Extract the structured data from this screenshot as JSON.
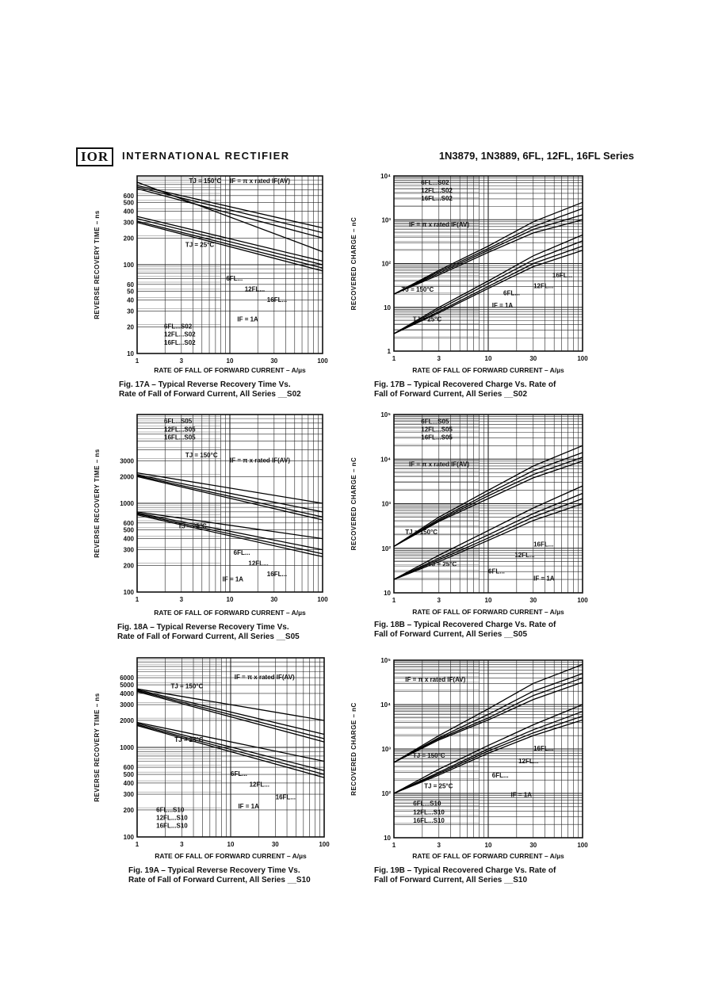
{
  "header": {
    "logo": "IOR",
    "company": "INTERNATIONAL RECTIFIER",
    "series": "1N3879, 1N3889, 6FL, 12FL, 16FL Series"
  },
  "x_axis_label": "RATE OF FALL OF FORWARD CURRENT – A/µs",
  "chart_data": [
    {
      "id": "fig17a",
      "type": "line",
      "fig": "Fig. 17A –",
      "caption_line1": "Typical Reverse Recovery Time Vs.",
      "caption_line2": "Rate of Fall of Forward Current, All Series __S02",
      "ylabel": "REVERSE RECOVERY TIME – ns",
      "xlabel": "RATE OF FALL OF FORWARD CURRENT – A/µs",
      "xlim": [
        1,
        100
      ],
      "ylim": [
        10,
        1000
      ],
      "xscale": "log",
      "yscale": "log",
      "xticks": [
        "1",
        "3",
        "10",
        "30",
        "100"
      ],
      "yticks": [
        [
          "10",
          "10"
        ],
        [
          "20",
          "20"
        ],
        [
          "30",
          "30"
        ],
        [
          "40",
          "40"
        ],
        [
          "50",
          "50"
        ],
        [
          "60",
          "60"
        ],
        [
          "100",
          "100"
        ],
        [
          "200",
          "200"
        ],
        [
          "300",
          "300"
        ],
        [
          "400",
          "400"
        ],
        [
          "500",
          "500"
        ],
        [
          "600",
          "600"
        ]
      ],
      "annotations": [
        "TJ = 150°C",
        "IF = π x rated IF(AV)",
        "TJ = 25°C",
        "6FL...",
        "12FL...",
        "16FL...",
        "IF = 1A"
      ],
      "legend": [
        "6FL...S02",
        "12FL...S02",
        "16FL...S02"
      ],
      "series": [
        {
          "x": [
            1,
            100
          ],
          "y": [
            850,
            140
          ]
        },
        {
          "x": [
            1,
            100
          ],
          "y": [
            780,
            260
          ]
        },
        {
          "x": [
            1,
            100
          ],
          "y": [
            750,
            230
          ]
        },
        {
          "x": [
            1,
            100
          ],
          "y": [
            720,
            200
          ]
        },
        {
          "x": [
            1,
            100
          ],
          "y": [
            350,
            110
          ]
        },
        {
          "x": [
            1,
            100
          ],
          "y": [
            330,
            100
          ]
        },
        {
          "x": [
            1,
            100
          ],
          "y": [
            310,
            92
          ]
        },
        {
          "x": [
            1,
            100
          ],
          "y": [
            300,
            85
          ]
        }
      ]
    },
    {
      "id": "fig17b",
      "type": "line",
      "fig": "Fig. 17B –",
      "caption_line1": "Typical Recovered Charge Vs. Rate of",
      "caption_line2": "Fall of Forward Current, All Series __S02",
      "ylabel": "RECOVERED CHARGE – nC",
      "xlabel": "RATE OF FALL OF FORWARD CURRENT – A/µs",
      "xlim": [
        1,
        100
      ],
      "ylim": [
        1,
        10000
      ],
      "xscale": "log",
      "yscale": "log",
      "xticks": [
        "1",
        "3",
        "10",
        "30",
        "100"
      ],
      "yticks": [
        [
          "1",
          "1"
        ],
        [
          "10",
          "10"
        ],
        [
          "100",
          "10²"
        ],
        [
          "1000",
          "10³"
        ],
        [
          "10000",
          "10⁴"
        ]
      ],
      "annotations": [
        "IF = π x rated IF(AV)",
        "TJ = 150°C",
        "TJ = 25°C",
        "6FL...",
        "12FL...",
        "16FL...",
        "IF = 1A"
      ],
      "legend": [
        "6FL...S02",
        "12FL...S02",
        "16FL...S02"
      ],
      "series": [
        {
          "x": [
            1,
            3,
            10,
            30,
            100
          ],
          "y": [
            20,
            70,
            250,
            900,
            2500
          ]
        },
        {
          "x": [
            1,
            3,
            10,
            30,
            100
          ],
          "y": [
            20,
            65,
            220,
            700,
            1800
          ]
        },
        {
          "x": [
            1,
            3,
            10,
            30,
            100
          ],
          "y": [
            20,
            60,
            200,
            600,
            1300
          ]
        },
        {
          "x": [
            1,
            3,
            10,
            30,
            100
          ],
          "y": [
            20,
            55,
            180,
            500,
            1000
          ]
        },
        {
          "x": [
            1,
            3,
            10,
            30,
            100
          ],
          "y": [
            2.5,
            10,
            40,
            150,
            450
          ]
        },
        {
          "x": [
            1,
            3,
            10,
            30,
            100
          ],
          "y": [
            2.5,
            9,
            35,
            120,
            330
          ]
        },
        {
          "x": [
            1,
            3,
            10,
            30,
            100
          ],
          "y": [
            2.5,
            8,
            30,
            100,
            250
          ]
        },
        {
          "x": [
            1,
            3,
            10,
            30,
            100
          ],
          "y": [
            2.5,
            7.5,
            27,
            85,
            200
          ]
        }
      ]
    },
    {
      "id": "fig18a",
      "type": "line",
      "fig": "Fig. 18A –",
      "caption_line1": "Typical Reverse Recovery Time Vs.",
      "caption_line2": "Rate of Fall of Forward Current, All Series __S05",
      "ylabel": "REVERSE RECOVERY TIME – ns",
      "xlabel": "RATE OF FALL OF FORWARD CURRENT – A/µs",
      "xlim": [
        1,
        100
      ],
      "ylim": [
        100,
        10000
      ],
      "xscale": "log",
      "yscale": "log",
      "xticks": [
        "1",
        "3",
        "10",
        "30",
        "100"
      ],
      "yticks": [
        [
          "100",
          "100"
        ],
        [
          "200",
          "200"
        ],
        [
          "300",
          "300"
        ],
        [
          "400",
          "400"
        ],
        [
          "500",
          "500"
        ],
        [
          "600",
          "600"
        ],
        [
          "1000",
          "1000"
        ],
        [
          "2000",
          "2000"
        ],
        [
          "3000",
          "3000"
        ]
      ],
      "annotations": [
        "TJ = 150°C",
        "IF = π x rated IF(AV)",
        "TJ = 25°C",
        "6FL...",
        "12FL...",
        "16FL...",
        "IF = 1A"
      ],
      "legend": [
        "6FL...S05",
        "12FL...S05",
        "16FL...S05"
      ],
      "series": [
        {
          "x": [
            1,
            100
          ],
          "y": [
            2200,
            1000
          ]
        },
        {
          "x": [
            1,
            100
          ],
          "y": [
            2100,
            800
          ]
        },
        {
          "x": [
            1,
            100
          ],
          "y": [
            2050,
            700
          ]
        },
        {
          "x": [
            1,
            100
          ],
          "y": [
            2000,
            650
          ]
        },
        {
          "x": [
            1,
            100
          ],
          "y": [
            800,
            400
          ]
        },
        {
          "x": [
            1,
            100
          ],
          "y": [
            780,
            300
          ]
        },
        {
          "x": [
            1,
            100
          ],
          "y": [
            760,
            270
          ]
        },
        {
          "x": [
            1,
            100
          ],
          "y": [
            740,
            250
          ]
        }
      ]
    },
    {
      "id": "fig18b",
      "type": "line",
      "fig": "Fig. 18B –",
      "caption_line1": "Typical Recovered Charge Vs. Rate of",
      "caption_line2": "Fall of Forward Current, All Series __S05",
      "ylabel": "RECOVERED CHARGE – nC",
      "xlabel": "RATE OF FALL OF FORWARD CURRENT – A/µs",
      "xlim": [
        1,
        100
      ],
      "ylim": [
        10,
        100000
      ],
      "xscale": "log",
      "yscale": "log",
      "xticks": [
        "1",
        "3",
        "10",
        "30",
        "100"
      ],
      "yticks": [
        [
          "10",
          "10"
        ],
        [
          "100",
          "10²"
        ],
        [
          "1000",
          "10³"
        ],
        [
          "10000",
          "10⁴"
        ],
        [
          "100000",
          "10⁵"
        ]
      ],
      "annotations": [
        "IF = π x rated IF(AV)",
        "TJ = 150°C",
        "TJ = 25°C",
        "6FL...",
        "12FL...",
        "16FL...",
        "IF = 1A"
      ],
      "legend": [
        "6FL...S05",
        "12FL...S05",
        "16FL...S05"
      ],
      "series": [
        {
          "x": [
            1,
            3,
            10,
            30,
            100
          ],
          "y": [
            110,
            500,
            2000,
            7000,
            20000
          ]
        },
        {
          "x": [
            1,
            3,
            10,
            30,
            100
          ],
          "y": [
            110,
            450,
            1700,
            5500,
            14000
          ]
        },
        {
          "x": [
            1,
            3,
            10,
            30,
            100
          ],
          "y": [
            110,
            420,
            1500,
            4500,
            11000
          ]
        },
        {
          "x": [
            1,
            3,
            10,
            30,
            100
          ],
          "y": [
            110,
            400,
            1300,
            3800,
            9000
          ]
        },
        {
          "x": [
            1,
            3,
            10,
            30,
            100
          ],
          "y": [
            20,
            70,
            250,
            800,
            2500
          ]
        },
        {
          "x": [
            1,
            3,
            10,
            30,
            100
          ],
          "y": [
            20,
            60,
            200,
            600,
            1700
          ]
        },
        {
          "x": [
            1,
            3,
            10,
            30,
            100
          ],
          "y": [
            20,
            55,
            170,
            500,
            1300
          ]
        },
        {
          "x": [
            1,
            3,
            10,
            30,
            100
          ],
          "y": [
            20,
            50,
            150,
            420,
            1000
          ]
        }
      ]
    },
    {
      "id": "fig19a",
      "type": "line",
      "fig": "Fig. 19A –",
      "caption_line1": "Typical Reverse Recovery Time Vs.",
      "caption_line2": "Rate of Fall of Forward Current, All Series __S10",
      "ylabel": "REVERSE RECOVERY TIME – ns",
      "xlabel": "RATE OF FALL OF FORWARD CURRENT – A/µs",
      "xlim": [
        1,
        100
      ],
      "ylim": [
        100,
        10000
      ],
      "xscale": "log",
      "yscale": "log",
      "xticks": [
        "1",
        "3",
        "10",
        "30",
        "100"
      ],
      "yticks": [
        [
          "100",
          "100"
        ],
        [
          "200",
          "200"
        ],
        [
          "300",
          "300"
        ],
        [
          "400",
          "400"
        ],
        [
          "500",
          "500"
        ],
        [
          "600",
          "600"
        ],
        [
          "1000",
          "1000"
        ],
        [
          "2000",
          "2000"
        ],
        [
          "3000",
          "3000"
        ],
        [
          "4000",
          "4000"
        ],
        [
          "5000",
          "5000"
        ],
        [
          "6000",
          "6000"
        ]
      ],
      "annotations": [
        "TJ = 150°C",
        "IF = π x rated IF(AV)",
        "TJ = 25°C",
        "6FL...",
        "12FL...",
        "16FL...",
        "IF = 1A"
      ],
      "legend": [
        "6FL...S10",
        "12FL...S10",
        "16FL...S10"
      ],
      "series": [
        {
          "x": [
            1,
            100
          ],
          "y": [
            4500,
            2000
          ]
        },
        {
          "x": [
            1,
            100
          ],
          "y": [
            4400,
            1400
          ]
        },
        {
          "x": [
            1,
            100
          ],
          "y": [
            4300,
            1250
          ]
        },
        {
          "x": [
            1,
            100
          ],
          "y": [
            4200,
            1150
          ]
        },
        {
          "x": [
            1,
            100
          ],
          "y": [
            1900,
            700
          ]
        },
        {
          "x": [
            1,
            100
          ],
          "y": [
            1850,
            550
          ]
        },
        {
          "x": [
            1,
            100
          ],
          "y": [
            1800,
            500
          ]
        },
        {
          "x": [
            1,
            100
          ],
          "y": [
            1750,
            460
          ]
        }
      ]
    },
    {
      "id": "fig19b",
      "type": "line",
      "fig": "Fig. 19B –",
      "caption_line1": "Typical Recovered Charge Vs. Rate of",
      "caption_line2": "Fall of Forward Current, All Series __S10",
      "ylabel": "RECOVERED CHARGE – nC",
      "xlabel": "RATE OF FALL OF FORWARD CURRENT – A/µs",
      "xlim": [
        1,
        100
      ],
      "ylim": [
        10,
        100000
      ],
      "xscale": "log",
      "yscale": "log",
      "xticks": [
        "1",
        "3",
        "10",
        "30",
        "100"
      ],
      "yticks": [
        [
          "10",
          "10"
        ],
        [
          "100",
          "10²"
        ],
        [
          "1000",
          "10³"
        ],
        [
          "10000",
          "10⁴"
        ],
        [
          "100000",
          "10⁵"
        ]
      ],
      "annotations": [
        "IF = π x rated IF(AV)",
        "TJ = 150°C",
        "TJ = 25°C",
        "6FL...",
        "12FL...",
        "16FL...",
        "IF = 1A"
      ],
      "legend": [
        "6FL...S10",
        "12FL...S10",
        "16FL...S10"
      ],
      "series": [
        {
          "x": [
            1,
            3,
            10,
            30,
            100
          ],
          "y": [
            500,
            2000,
            8000,
            30000,
            80000
          ]
        },
        {
          "x": [
            1,
            3,
            10,
            30,
            100
          ],
          "y": [
            500,
            1800,
            6000,
            20000,
            50000
          ]
        },
        {
          "x": [
            1,
            3,
            10,
            30,
            100
          ],
          "y": [
            500,
            1700,
            5000,
            16000,
            40000
          ]
        },
        {
          "x": [
            1,
            3,
            10,
            30,
            100
          ],
          "y": [
            500,
            1600,
            4500,
            13000,
            32000
          ]
        },
        {
          "x": [
            1,
            3,
            10,
            30,
            100
          ],
          "y": [
            100,
            350,
            1200,
            3500,
            10000
          ]
        },
        {
          "x": [
            1,
            3,
            10,
            30,
            100
          ],
          "y": [
            100,
            300,
            1000,
            2700,
            7000
          ]
        },
        {
          "x": [
            1,
            3,
            10,
            30,
            100
          ],
          "y": [
            100,
            280,
            900,
            2300,
            5500
          ]
        },
        {
          "x": [
            1,
            3,
            10,
            30,
            100
          ],
          "y": [
            100,
            260,
            800,
            2000,
            4500
          ]
        }
      ]
    }
  ]
}
